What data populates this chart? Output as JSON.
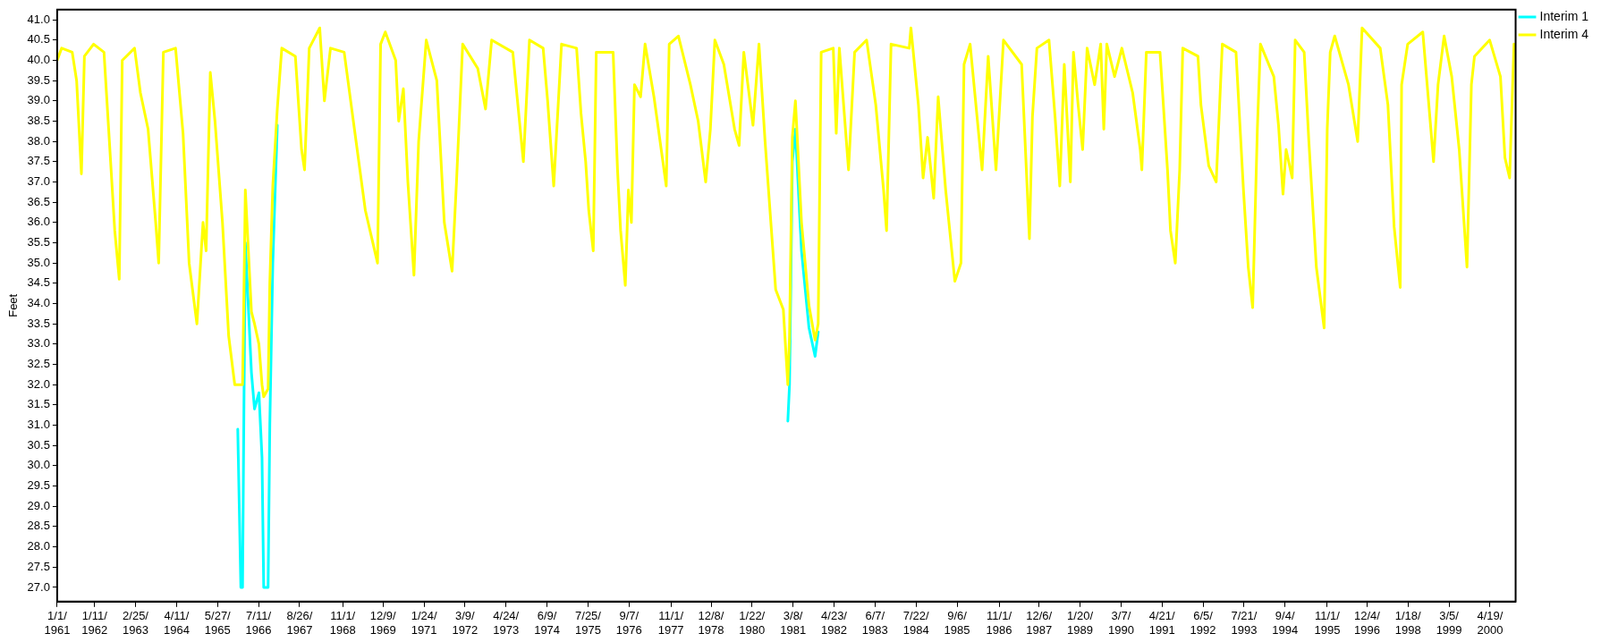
{
  "chart_data": {
    "type": "line",
    "ylabel": "Feet",
    "legend": "top right",
    "grid": false,
    "xlim": [
      "1961-01-01",
      "2000-12-31"
    ],
    "ylim": [
      26.65,
      41.25
    ],
    "xticks": [
      {
        "value": "1961-01-01",
        "label": "1/1/ 1961"
      },
      {
        "value": "1962-01-11",
        "label": "1/11/ 1962"
      },
      {
        "value": "1963-02-25",
        "label": "2/25/ 1963"
      },
      {
        "value": "1964-04-11",
        "label": "4/11/ 1964"
      },
      {
        "value": "1965-05-27",
        "label": "5/27/ 1965"
      },
      {
        "value": "1966-07-11",
        "label": "7/11/ 1966"
      },
      {
        "value": "1967-08-26",
        "label": "8/26/ 1967"
      },
      {
        "value": "1968-11-01",
        "label": "11/1/ 1968"
      },
      {
        "value": "1969-12-09",
        "label": "12/9/ 1969"
      },
      {
        "value": "1971-01-24",
        "label": "1/24/ 1971"
      },
      {
        "value": "1972-03-09",
        "label": "3/9/ 1972"
      },
      {
        "value": "1973-04-24",
        "label": "4/24/ 1973"
      },
      {
        "value": "1974-06-09",
        "label": "6/9/ 1974"
      },
      {
        "value": "1975-07-25",
        "label": "7/25/ 1975"
      },
      {
        "value": "1976-09-07",
        "label": "9/7/ 1976"
      },
      {
        "value": "1977-11-01",
        "label": "11/1/ 1977"
      },
      {
        "value": "1978-12-08",
        "label": "12/8/ 1978"
      },
      {
        "value": "1980-01-22",
        "label": "1/22/ 1980"
      },
      {
        "value": "1981-03-08",
        "label": "3/8/ 1981"
      },
      {
        "value": "1982-04-23",
        "label": "4/23/ 1982"
      },
      {
        "value": "1983-06-07",
        "label": "6/7/ 1983"
      },
      {
        "value": "1984-07-22",
        "label": "7/22/ 1984"
      },
      {
        "value": "1985-09-06",
        "label": "9/6/ 1985"
      },
      {
        "value": "1986-11-01",
        "label": "11/1/ 1986"
      },
      {
        "value": "1987-12-06",
        "label": "12/6/ 1987"
      },
      {
        "value": "1989-01-20",
        "label": "1/20/ 1989"
      },
      {
        "value": "1990-03-07",
        "label": "3/7/ 1990"
      },
      {
        "value": "1991-04-21",
        "label": "4/21/ 1991"
      },
      {
        "value": "1992-06-05",
        "label": "6/5/ 1992"
      },
      {
        "value": "1993-07-21",
        "label": "7/21/ 1993"
      },
      {
        "value": "1994-09-04",
        "label": "9/4/ 1994"
      },
      {
        "value": "1995-11-01",
        "label": "11/1/ 1995"
      },
      {
        "value": "1996-12-04",
        "label": "12/4/ 1996"
      },
      {
        "value": "1998-01-18",
        "label": "1/18/ 1998"
      },
      {
        "value": "1999-03-05",
        "label": "3/5/ 1999"
      },
      {
        "value": "2000-04-19",
        "label": "4/19/ 2000"
      }
    ],
    "yticks": [
      {
        "value": 27,
        "label": "27.0"
      },
      {
        "value": 27.5,
        "label": "27.5"
      },
      {
        "value": 28,
        "label": "28.0"
      },
      {
        "value": 28.5,
        "label": "28.5"
      },
      {
        "value": 29,
        "label": "29.0"
      },
      {
        "value": 29.5,
        "label": "29.5"
      },
      {
        "value": 30,
        "label": "30.0"
      },
      {
        "value": 30.5,
        "label": "30.5"
      },
      {
        "value": 31,
        "label": "31.0"
      },
      {
        "value": 31.5,
        "label": "31.5"
      },
      {
        "value": 32,
        "label": "32.0"
      },
      {
        "value": 32.5,
        "label": "32.5"
      },
      {
        "value": 33,
        "label": "33.0"
      },
      {
        "value": 33.5,
        "label": "33.5"
      },
      {
        "value": 34,
        "label": "34.0"
      },
      {
        "value": 34.5,
        "label": "34.5"
      },
      {
        "value": 35,
        "label": "35.0"
      },
      {
        "value": 35.5,
        "label": "35.5"
      },
      {
        "value": 36,
        "label": "36.0"
      },
      {
        "value": 36.5,
        "label": "36.5"
      },
      {
        "value": 37,
        "label": "37.0"
      },
      {
        "value": 37.5,
        "label": "37.5"
      },
      {
        "value": 38,
        "label": "38.0"
      },
      {
        "value": 38.5,
        "label": "38.5"
      },
      {
        "value": 39,
        "label": "39.0"
      },
      {
        "value": 39.5,
        "label": "39.5"
      },
      {
        "value": 40,
        "label": "40.0"
      },
      {
        "value": 40.5,
        "label": "40.5"
      },
      {
        "value": 41,
        "label": "41.0"
      }
    ],
    "x": [
      "1961-01-01",
      "1961-02-15",
      "1961-06-01",
      "1961-07-15",
      "1961-09-01",
      "1961-10-01",
      "1962-01-01",
      "1962-04-15",
      "1962-06-01",
      "1962-08-01",
      "1962-09-15",
      "1962-10-15",
      "1963-02-15",
      "1963-04-15",
      "1963-07-01",
      "1963-09-15",
      "1963-10-15",
      "1963-12-01",
      "1964-04-01",
      "1964-06-15",
      "1964-08-15",
      "1964-11-01",
      "1965-01-01",
      "1965-02-01",
      "1965-03-15",
      "1965-05-01",
      "1965-07-15",
      "1965-09-15",
      "1965-11-15",
      "1965-12-15",
      "1966-01-15",
      "1966-02-01",
      "1966-02-15",
      "1966-03-01",
      "1966-05-01",
      "1966-06-01",
      "1966-07-15",
      "1966-08-15",
      "1966-09-01",
      "1966-10-15",
      "1966-11-01",
      "1966-12-01",
      "1967-01-15",
      "1967-03-01",
      "1967-07-15",
      "1967-09-15",
      "1967-10-15",
      "1967-12-01",
      "1968-03-15",
      "1968-05-01",
      "1968-07-01",
      "1968-11-15",
      "1969-02-15",
      "1969-06-15",
      "1969-10-15",
      "1969-11-15",
      "1970-01-01",
      "1970-04-15",
      "1970-05-15",
      "1970-07-01",
      "1970-08-15",
      "1970-10-15",
      "1970-12-01",
      "1971-02-15",
      "1971-06-01",
      "1971-08-15",
      "1971-11-01",
      "1971-12-15",
      "1972-02-15",
      "1972-07-15",
      "1972-10-01",
      "1972-12-01",
      "1973-07-01",
      "1973-10-15",
      "1973-12-15",
      "1974-05-01",
      "1974-06-15",
      "1974-08-15",
      "1974-11-01",
      "1975-04-01",
      "1975-05-15",
      "1975-07-01",
      "1975-08-01",
      "1975-09-15",
      "1975-10-15",
      "1976-04-01",
      "1976-05-15",
      "1976-06-15",
      "1976-08-01",
      "1976-09-01",
      "1976-10-01",
      "1976-11-01",
      "1977-01-01",
      "1977-02-15",
      "1977-05-15",
      "1977-09-15",
      "1977-10-15",
      "1978-01-15",
      "1978-05-15",
      "1978-08-01",
      "1978-10-15",
      "1978-12-01",
      "1979-01-15",
      "1979-04-15",
      "1979-08-01",
      "1979-09-15",
      "1979-11-01",
      "1980-02-01",
      "1980-04-01",
      "1980-06-01",
      "1980-08-01",
      "1980-09-15",
      "1980-12-01",
      "1981-01-15",
      "1981-02-01",
      "1981-03-01",
      "1981-04-01",
      "1981-06-01",
      "1981-08-15",
      "1981-10-15",
      "1981-11-15",
      "1981-12-15",
      "1982-04-15",
      "1982-05-15",
      "1982-06-15",
      "1982-09-15",
      "1982-11-15",
      "1983-03-15",
      "1983-06-15",
      "1983-09-01",
      "1983-10-01",
      "1983-11-15",
      "1984-05-15",
      "1984-06-01",
      "1984-08-15",
      "1984-10-01",
      "1984-11-15",
      "1985-01-15",
      "1985-03-01",
      "1985-05-15",
      "1985-08-15",
      "1985-10-15",
      "1985-11-15",
      "1986-01-15",
      "1986-05-15",
      "1986-07-15",
      "1986-10-01",
      "1986-12-15",
      "1987-06-15",
      "1987-09-01",
      "1987-10-01",
      "1987-11-15",
      "1988-03-15",
      "1988-05-15",
      "1988-07-01",
      "1988-08-15",
      "1988-10-15",
      "1988-11-15",
      "1989-01-01",
      "1989-02-15",
      "1989-04-01",
      "1989-06-15",
      "1989-08-15",
      "1989-09-15",
      "1989-10-15",
      "1990-01-01",
      "1990-03-15",
      "1990-07-01",
      "1990-09-15",
      "1990-10-01",
      "1990-11-15",
      "1991-04-01",
      "1991-06-15",
      "1991-07-15",
      "1991-09-01",
      "1991-10-15",
      "1991-11-15",
      "1992-04-15",
      "1992-05-15",
      "1992-08-01",
      "1992-10-15",
      "1992-12-15",
      "1993-05-01",
      "1993-07-15",
      "1993-09-01",
      "1993-10-15",
      "1993-12-01",
      "1994-01-01",
      "1994-05-15",
      "1994-07-01",
      "1994-08-15",
      "1994-09-15",
      "1994-11-15",
      "1994-12-15",
      "1995-03-15",
      "1995-05-01",
      "1995-07-15",
      "1995-10-01",
      "1995-11-01",
      "1995-12-01",
      "1996-01-15",
      "1996-06-01",
      "1996-09-01",
      "1996-10-15",
      "1997-04-15",
      "1997-07-01",
      "1997-09-01",
      "1997-11-01",
      "1997-11-15",
      "1998-01-15",
      "1998-06-15",
      "1998-08-15",
      "1998-10-01",
      "1998-11-15",
      "1999-01-15",
      "1999-04-01",
      "1999-06-15",
      "1999-09-01",
      "1999-10-15",
      "1999-11-15",
      "2000-04-15",
      "2000-08-01",
      "2000-09-15",
      "2000-11-01",
      "2000-12-01",
      "2000-12-15"
    ],
    "series": [
      {
        "name": "Interim 1",
        "color": "#00ffff",
        "values": [
          null,
          null,
          null,
          null,
          null,
          null,
          null,
          null,
          null,
          null,
          null,
          null,
          null,
          null,
          null,
          null,
          null,
          null,
          null,
          null,
          null,
          null,
          null,
          null,
          null,
          null,
          null,
          null,
          null,
          30.9,
          27.0,
          27.0,
          31.5,
          35.5,
          32.3,
          31.4,
          31.8,
          30.2,
          27.0,
          27.0,
          31.0,
          35.0,
          38.4,
          null,
          null,
          null,
          null,
          null,
          null,
          null,
          null,
          null,
          null,
          null,
          null,
          null,
          null,
          null,
          null,
          null,
          null,
          null,
          null,
          null,
          null,
          null,
          null,
          null,
          null,
          null,
          null,
          null,
          null,
          null,
          null,
          null,
          null,
          null,
          null,
          null,
          null,
          null,
          null,
          null,
          null,
          null,
          null,
          null,
          null,
          null,
          null,
          null,
          null,
          null,
          null,
          null,
          null,
          null,
          null,
          null,
          null,
          null,
          null,
          null,
          null,
          null,
          null,
          null,
          null,
          null,
          null,
          null,
          null,
          31.1,
          32.0,
          37.5,
          38.3,
          35.3,
          33.4,
          32.7,
          33.3,
          null,
          null,
          null,
          null,
          null,
          null,
          null,
          null,
          null,
          null,
          null,
          null,
          null,
          null,
          null,
          null,
          null,
          null,
          null,
          null,
          null,
          null,
          null,
          null,
          null,
          null,
          null,
          null,
          null,
          null,
          null,
          null,
          null,
          null,
          null,
          null,
          null,
          null,
          null,
          null,
          null,
          null,
          null,
          null,
          null,
          null,
          null,
          null,
          null,
          null,
          null,
          null,
          null,
          null,
          null,
          null,
          null,
          null,
          null,
          null,
          null,
          null,
          null,
          null,
          null,
          null,
          null,
          null,
          null,
          null,
          null,
          null,
          null,
          null,
          null,
          null,
          null,
          null,
          null,
          null,
          null,
          null,
          null,
          null,
          null,
          null,
          null,
          null,
          null,
          null,
          null,
          null,
          null,
          null,
          null,
          null,
          null,
          null,
          null,
          null,
          null,
          null,
          null,
          null,
          null
        ]
      },
      {
        "name": "Interim 4",
        "color": "#ffff00",
        "values": [
          40.0,
          40.3,
          40.2,
          39.5,
          37.2,
          40.1,
          40.4,
          40.2,
          38.3,
          35.8,
          34.6,
          40.0,
          40.3,
          39.2,
          38.3,
          36.0,
          35.0,
          40.2,
          40.3,
          38.2,
          35.0,
          33.5,
          36.0,
          35.3,
          39.7,
          38.5,
          36.0,
          33.2,
          32.0,
          32.0,
          32.0,
          32.0,
          34.3,
          36.8,
          33.8,
          33.5,
          33.0,
          32.0,
          31.7,
          31.9,
          34.5,
          36.9,
          38.8,
          40.3,
          40.1,
          37.8,
          37.3,
          40.3,
          40.8,
          39.0,
          40.3,
          40.2,
          38.5,
          36.3,
          35.0,
          40.4,
          40.7,
          40.0,
          38.5,
          39.3,
          37.0,
          34.7,
          38.0,
          40.5,
          39.5,
          36.0,
          34.8,
          37.0,
          40.4,
          39.8,
          38.8,
          40.5,
          40.2,
          37.5,
          40.5,
          40.3,
          39.0,
          36.9,
          40.4,
          40.3,
          38.7,
          37.5,
          36.3,
          35.3,
          40.2,
          40.2,
          37.3,
          35.8,
          34.45,
          36.8,
          36.0,
          39.4,
          39.1,
          40.4,
          39.1,
          36.9,
          40.4,
          40.6,
          39.4,
          38.5,
          37.0,
          38.3,
          40.5,
          39.9,
          38.3,
          37.9,
          40.2,
          38.4,
          40.4,
          38.0,
          35.9,
          34.35,
          33.85,
          32.0,
          33.2,
          38.1,
          39.0,
          36.0,
          33.95,
          33.1,
          33.5,
          40.2,
          40.3,
          38.2,
          40.3,
          37.3,
          40.2,
          40.5,
          38.9,
          36.8,
          35.8,
          40.4,
          40.3,
          40.8,
          38.9,
          37.1,
          38.1,
          36.6,
          39.1,
          36.8,
          34.55,
          35.0,
          39.9,
          40.4,
          37.3,
          40.1,
          37.3,
          40.5,
          39.9,
          35.6,
          38.6,
          40.3,
          40.5,
          38.6,
          36.9,
          39.9,
          37.0,
          40.2,
          38.9,
          37.8,
          40.3,
          39.4,
          40.4,
          38.3,
          40.4,
          39.6,
          40.3,
          39.2,
          37.8,
          37.3,
          40.2,
          40.2,
          37.3,
          35.8,
          35.0,
          37.3,
          40.3,
          40.1,
          38.9,
          37.4,
          37.0,
          40.4,
          40.2,
          36.8,
          34.9,
          33.9,
          38.3,
          40.4,
          39.6,
          38.4,
          36.7,
          37.8,
          37.1,
          40.5,
          40.2,
          38.0,
          34.9,
          33.4,
          38.3,
          40.2,
          40.6,
          39.4,
          38.0,
          40.8,
          40.3,
          38.9,
          35.9,
          34.4,
          39.4,
          40.4,
          40.7,
          38.9,
          37.5,
          39.4,
          40.6,
          39.6,
          37.8,
          34.9,
          39.4,
          40.1,
          40.5,
          39.6,
          37.6,
          37.1,
          39.4,
          40.4
        ]
      }
    ]
  }
}
